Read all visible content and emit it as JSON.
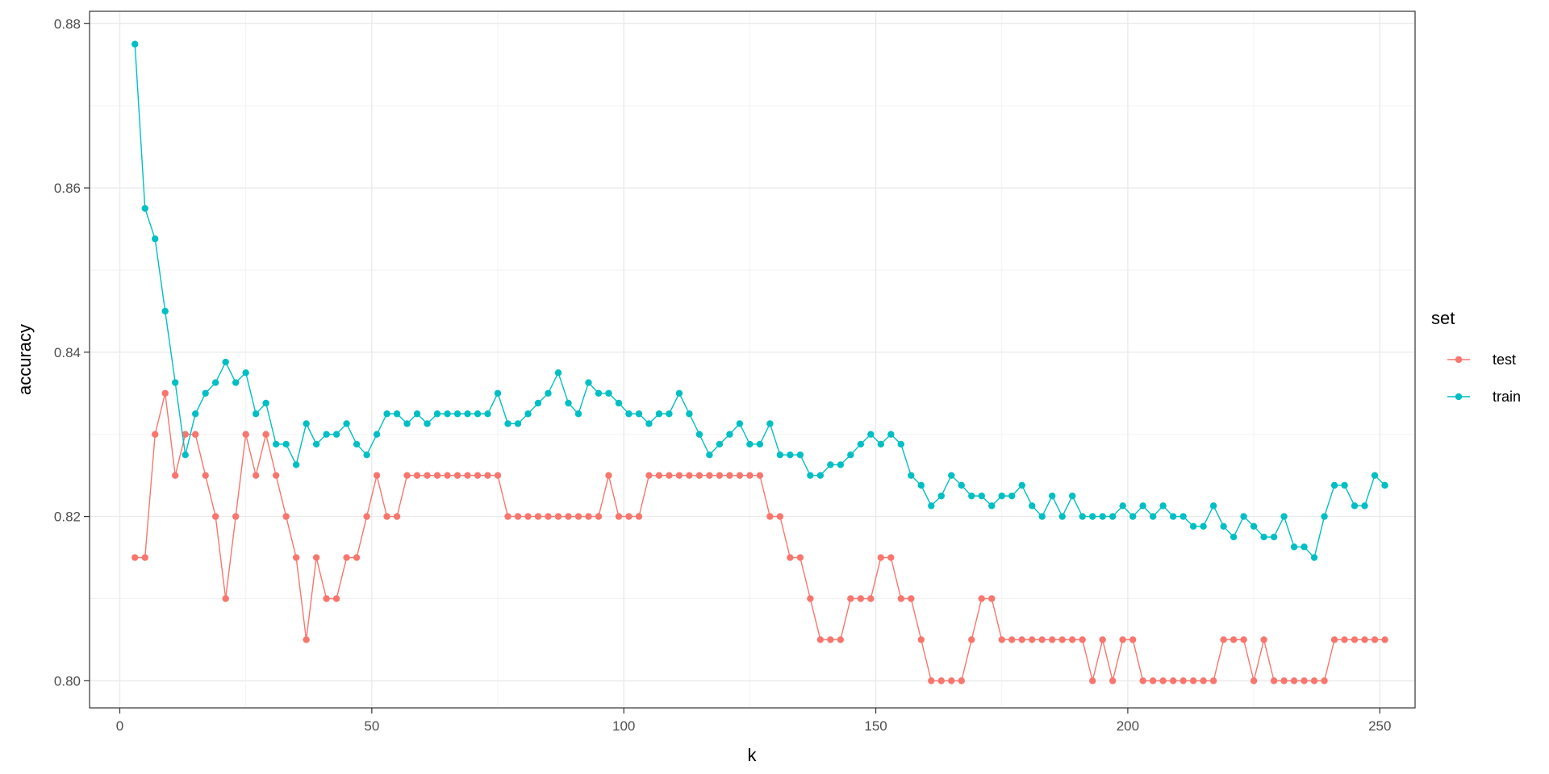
{
  "chart_data": {
    "type": "line",
    "xlabel": "k",
    "ylabel": "accuracy",
    "xlim": [
      -6,
      257
    ],
    "ylim": [
      0.7967,
      0.8815
    ],
    "x_ticks": [
      0,
      50,
      100,
      150,
      200,
      250
    ],
    "x_tick_labels": [
      "0",
      "50",
      "100",
      "150",
      "200",
      "250"
    ],
    "y_ticks": [
      0.8,
      0.82,
      0.84,
      0.86,
      0.88
    ],
    "y_tick_labels": [
      "0.80",
      "0.82",
      "0.84",
      "0.86",
      "0.88"
    ],
    "grid": true,
    "legend": {
      "title": "set",
      "placement": "right"
    },
    "x": [
      3,
      5,
      7,
      9,
      11,
      13,
      15,
      17,
      19,
      21,
      23,
      25,
      27,
      29,
      31,
      33,
      35,
      37,
      39,
      41,
      43,
      45,
      47,
      49,
      51,
      53,
      55,
      57,
      59,
      61,
      63,
      65,
      67,
      69,
      71,
      73,
      75,
      77,
      79,
      81,
      83,
      85,
      87,
      89,
      91,
      93,
      95,
      97,
      99,
      101,
      103,
      105,
      107,
      109,
      111,
      113,
      115,
      117,
      119,
      121,
      123,
      125,
      127,
      129,
      131,
      133,
      135,
      137,
      139,
      141,
      143,
      145,
      147,
      149,
      151,
      153,
      155,
      157,
      159,
      161,
      163,
      165,
      167,
      169,
      171,
      173,
      175,
      177,
      179,
      181,
      183,
      185,
      187,
      189,
      191,
      193,
      195,
      197,
      199,
      201,
      203,
      205,
      207,
      209,
      211,
      213,
      215,
      217,
      219,
      221,
      223,
      225,
      227,
      229,
      231,
      233,
      235,
      237,
      239,
      241,
      243,
      245,
      247,
      249,
      251
    ],
    "series": [
      {
        "name": "test",
        "color": "#F8766D",
        "values": [
          0.815,
          0.815,
          0.83,
          0.835,
          0.825,
          0.83,
          0.83,
          0.825,
          0.82,
          0.81,
          0.82,
          0.83,
          0.825,
          0.83,
          0.825,
          0.82,
          0.815,
          0.805,
          0.815,
          0.81,
          0.81,
          0.815,
          0.815,
          0.82,
          0.825,
          0.82,
          0.82,
          0.825,
          0.825,
          0.825,
          0.825,
          0.825,
          0.825,
          0.825,
          0.825,
          0.825,
          0.825,
          0.82,
          0.82,
          0.82,
          0.82,
          0.82,
          0.82,
          0.82,
          0.82,
          0.82,
          0.82,
          0.825,
          0.82,
          0.82,
          0.82,
          0.825,
          0.825,
          0.825,
          0.825,
          0.825,
          0.825,
          0.825,
          0.825,
          0.825,
          0.825,
          0.825,
          0.825,
          0.82,
          0.82,
          0.815,
          0.815,
          0.81,
          0.805,
          0.805,
          0.805,
          0.81,
          0.81,
          0.81,
          0.815,
          0.815,
          0.81,
          0.81,
          0.805,
          0.8,
          0.8,
          0.8,
          0.8,
          0.805,
          0.81,
          0.81,
          0.805,
          0.805,
          0.805,
          0.805,
          0.805,
          0.805,
          0.805,
          0.805,
          0.805,
          0.8,
          0.805,
          0.8,
          0.805,
          0.805,
          0.8,
          0.8,
          0.8,
          0.8,
          0.8,
          0.8,
          0.8,
          0.8,
          0.805,
          0.805,
          0.805,
          0.8,
          0.805,
          0.8,
          0.8,
          0.8,
          0.8,
          0.8,
          0.8,
          0.805,
          0.805,
          0.805,
          0.805,
          0.805,
          0.805
        ]
      },
      {
        "name": "train",
        "color": "#00BFC4",
        "values": [
          0.8775,
          0.8575,
          0.8538,
          0.845,
          0.8363,
          0.8275,
          0.8325,
          0.835,
          0.8363,
          0.8388,
          0.8363,
          0.8375,
          0.8325,
          0.8338,
          0.8288,
          0.8288,
          0.8263,
          0.8313,
          0.8288,
          0.83,
          0.83,
          0.8313,
          0.8288,
          0.8275,
          0.83,
          0.8325,
          0.8325,
          0.8313,
          0.8325,
          0.8313,
          0.8325,
          0.8325,
          0.8325,
          0.8325,
          0.8325,
          0.8325,
          0.835,
          0.8313,
          0.8313,
          0.8325,
          0.8338,
          0.835,
          0.8375,
          0.8338,
          0.8325,
          0.8363,
          0.835,
          0.835,
          0.8338,
          0.8325,
          0.8325,
          0.8313,
          0.8325,
          0.8325,
          0.835,
          0.8325,
          0.83,
          0.8275,
          0.8288,
          0.83,
          0.8313,
          0.8288,
          0.8288,
          0.8313,
          0.8275,
          0.8275,
          0.8275,
          0.825,
          0.825,
          0.8263,
          0.8263,
          0.8275,
          0.8288,
          0.83,
          0.8288,
          0.83,
          0.8288,
          0.825,
          0.8238,
          0.8213,
          0.8225,
          0.825,
          0.8238,
          0.8225,
          0.8225,
          0.8213,
          0.8225,
          0.8225,
          0.8238,
          0.8213,
          0.82,
          0.8225,
          0.82,
          0.8225,
          0.82,
          0.82,
          0.82,
          0.82,
          0.8213,
          0.82,
          0.8213,
          0.82,
          0.8213,
          0.82,
          0.82,
          0.8188,
          0.8188,
          0.8213,
          0.8188,
          0.8175,
          0.82,
          0.8188,
          0.8175,
          0.8175,
          0.82,
          0.8163,
          0.8163,
          0.815,
          0.82,
          0.8238,
          0.8238,
          0.8213,
          0.8213,
          0.825,
          0.8238
        ]
      }
    ]
  }
}
